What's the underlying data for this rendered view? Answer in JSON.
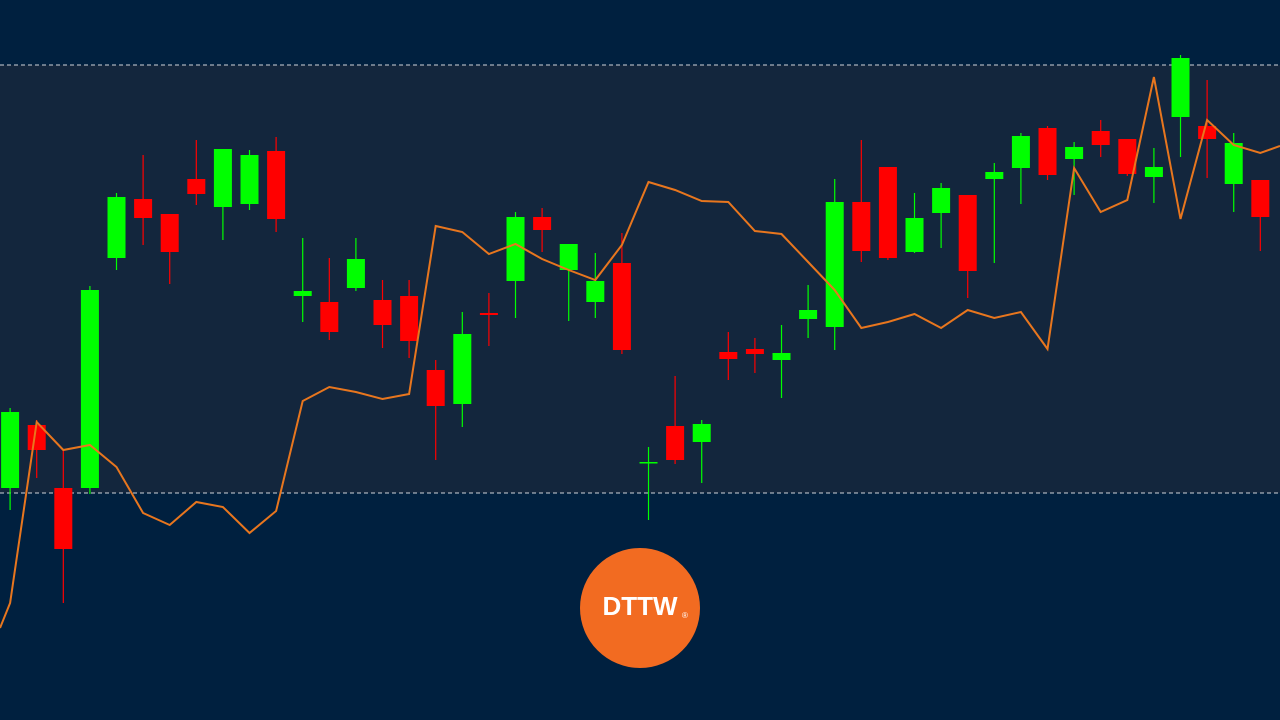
{
  "chart_data": {
    "type": "candlestick",
    "x": [
      1,
      2,
      3,
      4,
      5,
      6,
      7,
      8,
      9,
      10,
      11,
      12,
      13,
      14,
      15,
      16,
      17,
      18,
      19,
      20,
      21,
      22,
      23,
      24,
      25,
      26,
      27,
      28,
      29,
      30,
      31,
      32,
      33,
      34,
      35,
      36,
      37,
      38,
      39,
      40,
      41,
      42,
      43,
      44,
      45,
      46,
      47,
      48
    ],
    "open": [
      232,
      295,
      232,
      232,
      462,
      521,
      506,
      541,
      513,
      516,
      569,
      424,
      418,
      432,
      420,
      424,
      350,
      316,
      407,
      439,
      503,
      450,
      418,
      457,
      257,
      294,
      278,
      368,
      371,
      360,
      401,
      393,
      518,
      553,
      468,
      507,
      525,
      541,
      552,
      592,
      561,
      589,
      581,
      543,
      603,
      594,
      536,
      540
    ],
    "high": [
      312,
      300,
      270,
      434,
      527,
      565,
      506,
      580,
      571,
      570,
      583,
      482,
      462,
      482,
      440,
      440,
      360,
      408,
      427,
      508,
      512,
      476,
      467,
      487,
      273,
      344,
      300,
      388,
      382,
      395,
      435,
      541,
      580,
      553,
      527,
      537,
      525,
      557,
      587,
      594,
      578,
      600,
      581,
      572,
      665,
      640,
      587,
      540
    ],
    "low": [
      210,
      242,
      117,
      226,
      450,
      475,
      436,
      515,
      480,
      510,
      488,
      398,
      380,
      429,
      372,
      362,
      260,
      293,
      374,
      402,
      468,
      399,
      402,
      366,
      200,
      256,
      237,
      340,
      347,
      322,
      382,
      370,
      458,
      460,
      467,
      472,
      422,
      457,
      516,
      540,
      525,
      563,
      544,
      517,
      563,
      542,
      508,
      469
    ],
    "close": [
      308,
      270,
      171,
      430,
      523,
      502,
      468,
      526,
      571,
      565,
      501,
      429,
      388,
      461,
      395,
      379,
      314,
      386,
      405,
      503,
      490,
      476,
      439,
      370,
      258,
      260,
      296,
      361,
      366,
      367,
      410,
      518,
      469,
      462,
      502,
      532,
      449,
      548,
      584,
      545,
      573,
      575,
      546,
      553,
      662,
      581,
      577,
      503
    ],
    "up_color": "#00ff00",
    "down_color": "#ff0000",
    "line": {
      "color": "#e8761e",
      "x": [
        0.62,
        1,
        2,
        3,
        4,
        5,
        6,
        7,
        8,
        9,
        10,
        11,
        12,
        13,
        14,
        15,
        16,
        17,
        18,
        19,
        20,
        21,
        22,
        23,
        24,
        25,
        26,
        27,
        28,
        29,
        30,
        31,
        32,
        33,
        34,
        35,
        36,
        37,
        38,
        39,
        40,
        41,
        42,
        43,
        44,
        45,
        46,
        47,
        48,
        48.74
      ],
      "values": [
        92,
        117,
        298,
        270,
        275,
        253,
        207,
        195,
        218,
        213,
        187,
        209,
        319,
        333,
        328,
        321,
        326,
        494,
        488,
        466,
        476,
        461,
        450,
        440,
        475,
        538,
        530,
        519,
        518,
        489,
        486,
        458,
        430,
        392,
        398,
        406,
        392,
        410,
        402,
        408,
        371,
        552,
        508,
        520,
        643,
        501,
        600,
        575,
        567,
        574
      ]
    },
    "hlines": [
      655,
      227
    ],
    "band_color": "#13263d",
    "xlim": [
      0.62,
      48.74
    ],
    "ylim": [
      0,
      720
    ]
  },
  "logo": {
    "text": "DTTW",
    "mark": "®"
  }
}
